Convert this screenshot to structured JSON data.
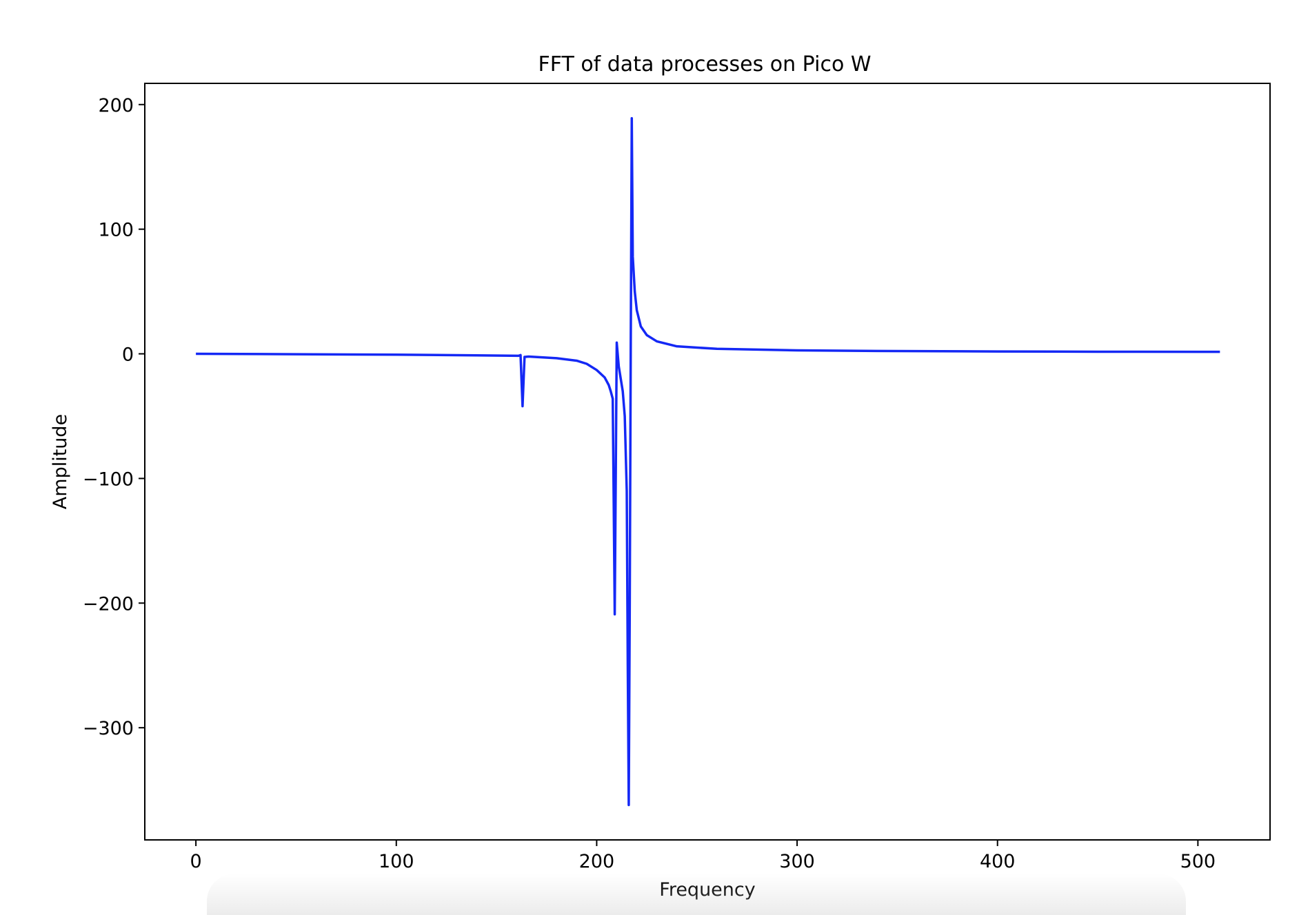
{
  "chart_data": {
    "type": "line",
    "title": "FFT of data processes on Pico W",
    "xlabel": "Frequency",
    "ylabel": "Amplitude",
    "xlim": [
      -25.5,
      536
    ],
    "ylim": [
      -390,
      217
    ],
    "xticks": [
      0,
      100,
      200,
      300,
      400,
      500
    ],
    "xtick_labels": [
      "0",
      "100",
      "200",
      "300",
      "400",
      "500"
    ],
    "yticks": [
      200,
      100,
      0,
      -100,
      -200,
      -300
    ],
    "ytick_labels": [
      "200",
      "100",
      "0",
      "−100",
      "−200",
      "−300"
    ],
    "grid": false,
    "series": [
      {
        "color": "#1428f5",
        "x": [
          0,
          50,
          100,
          140,
          161,
          162,
          163,
          164,
          166,
          180,
          190,
          195,
          200,
          204,
          206,
          207,
          208,
          208.5,
          209,
          209.5,
          210,
          211,
          212,
          213,
          214,
          215,
          215.5,
          216,
          216.5,
          217,
          217.5,
          218,
          219,
          220,
          222,
          225,
          230,
          240,
          260,
          300,
          350,
          400,
          450,
          500,
          511
        ],
        "y": [
          0,
          -0.3,
          -0.7,
          -1.2,
          -1.6,
          -1.0,
          -42,
          -2.5,
          -2.2,
          -3.5,
          -5.5,
          -8,
          -13,
          -19,
          -25,
          -30,
          -36,
          -120,
          -209,
          -100,
          9,
          -10,
          -20,
          -30,
          -50,
          -110,
          -250,
          -362,
          -200,
          10,
          189,
          78,
          50,
          35,
          22,
          15,
          10,
          6,
          4,
          2.8,
          2.2,
          1.9,
          1.7,
          1.6,
          1.6
        ]
      }
    ]
  }
}
